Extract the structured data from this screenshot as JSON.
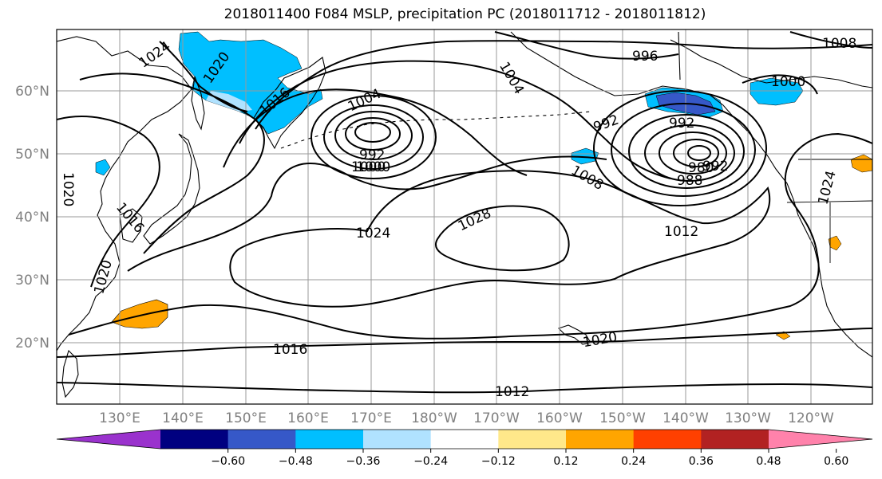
{
  "title": "2018011400 F084 MSLP, precipitation PC (2018011712 - 2018011812)",
  "latitude_labels": [
    "60°N",
    "50°N",
    "40°N",
    "30°N",
    "20°N"
  ],
  "longitude_labels": [
    "130°E",
    "140°E",
    "150°E",
    "160°E",
    "170°E",
    "180°W",
    "170°W",
    "160°W",
    "150°W",
    "140°W",
    "130°W",
    "120°W"
  ],
  "isobar_labels": [
    "1024",
    "1020",
    "1016",
    "1004",
    "1000",
    "992",
    "996",
    "1004",
    "992",
    "992",
    "980",
    "988",
    "1008",
    "1020",
    "1016",
    "1020",
    "1024",
    "1000",
    "1000",
    "992",
    "1008",
    "1028",
    "1024",
    "1012",
    "1016",
    "1020",
    "1012",
    "1024",
    "1008"
  ],
  "colorbar": {
    "colors": [
      "#9a32cd",
      "#000080",
      "#3658c8",
      "#00bfff",
      "#b0e2ff",
      "#ffffff",
      "#ffe88a",
      "#ffa500",
      "#ff4000",
      "#b22222",
      "#ff82ab"
    ],
    "tick_labels": [
      "−0.60",
      "−0.48",
      "−0.36",
      "−0.24",
      "−0.12",
      "0.12",
      "0.24",
      "0.36",
      "0.48",
      "0.60"
    ]
  }
}
